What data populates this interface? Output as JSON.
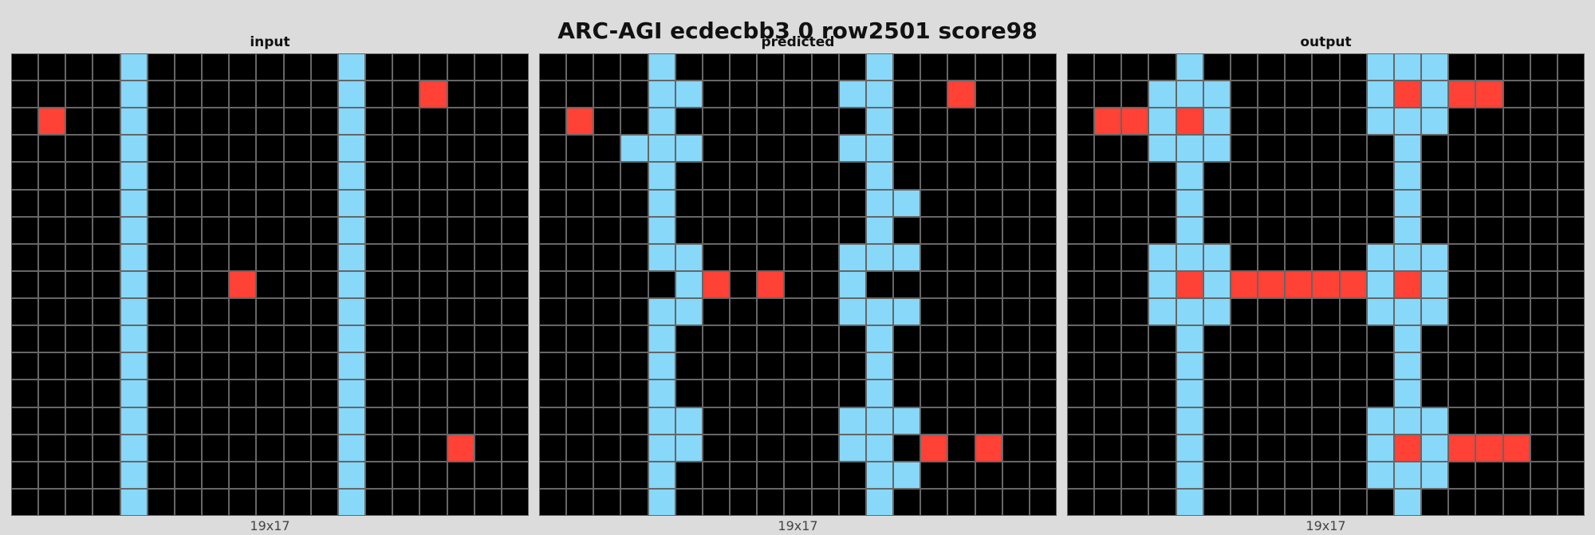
{
  "title": "ARC-AGI ecdecbb3 0 row2501 score98",
  "colors": {
    "0": "#000000",
    "2": "#ff4136",
    "8": "#87d8f9"
  },
  "panels": [
    {
      "label": "input",
      "dims": "19x17",
      "grid": [
        "0000800000008000000",
        "0000800000008002000",
        "0200800000008000000",
        "0000800000008000000",
        "0000800000008000000",
        "0000800000008000000",
        "0000800000008000000",
        "0000800000008000000",
        "0000800020008000000",
        "0000800000008000000",
        "0000800000008000000",
        "0000800000008000000",
        "0000800000008000000",
        "0000800000008000000",
        "0000800000008000200",
        "0000800000008000000",
        "0000800000008000000"
      ]
    },
    {
      "label": "predicted",
      "dims": "19x17",
      "grid": [
        "0000800000008000000",
        "0000880000088002000",
        "0200800000008000000",
        "0008880000088000000",
        "0000800000008000000",
        "0000800000008800000",
        "0000800000008000000",
        "0000880000088800000",
        "0000082020080000000",
        "0000880000088800000",
        "0000800000008000000",
        "0000800000008000000",
        "0000800000008000000",
        "0000880000088800000",
        "0000880000088020200",
        "0000800000008800000",
        "0000800000008000000"
      ]
    },
    {
      "label": "output",
      "dims": "19x17",
      "grid": [
        "0000800000088800000",
        "0008880000082822000",
        "0228280000088800000",
        "0008880000008000000",
        "0000800000008000000",
        "0000800000008000000",
        "0000800000008000000",
        "0008880000088800000",
        "0008282222282800000",
        "0008880000088800000",
        "0000800000008000000",
        "0000800000008000000",
        "0000800000008000000",
        "0000800000088800000",
        "0000800000082822200",
        "0000800000088800000",
        "0000800000008000000"
      ]
    }
  ]
}
